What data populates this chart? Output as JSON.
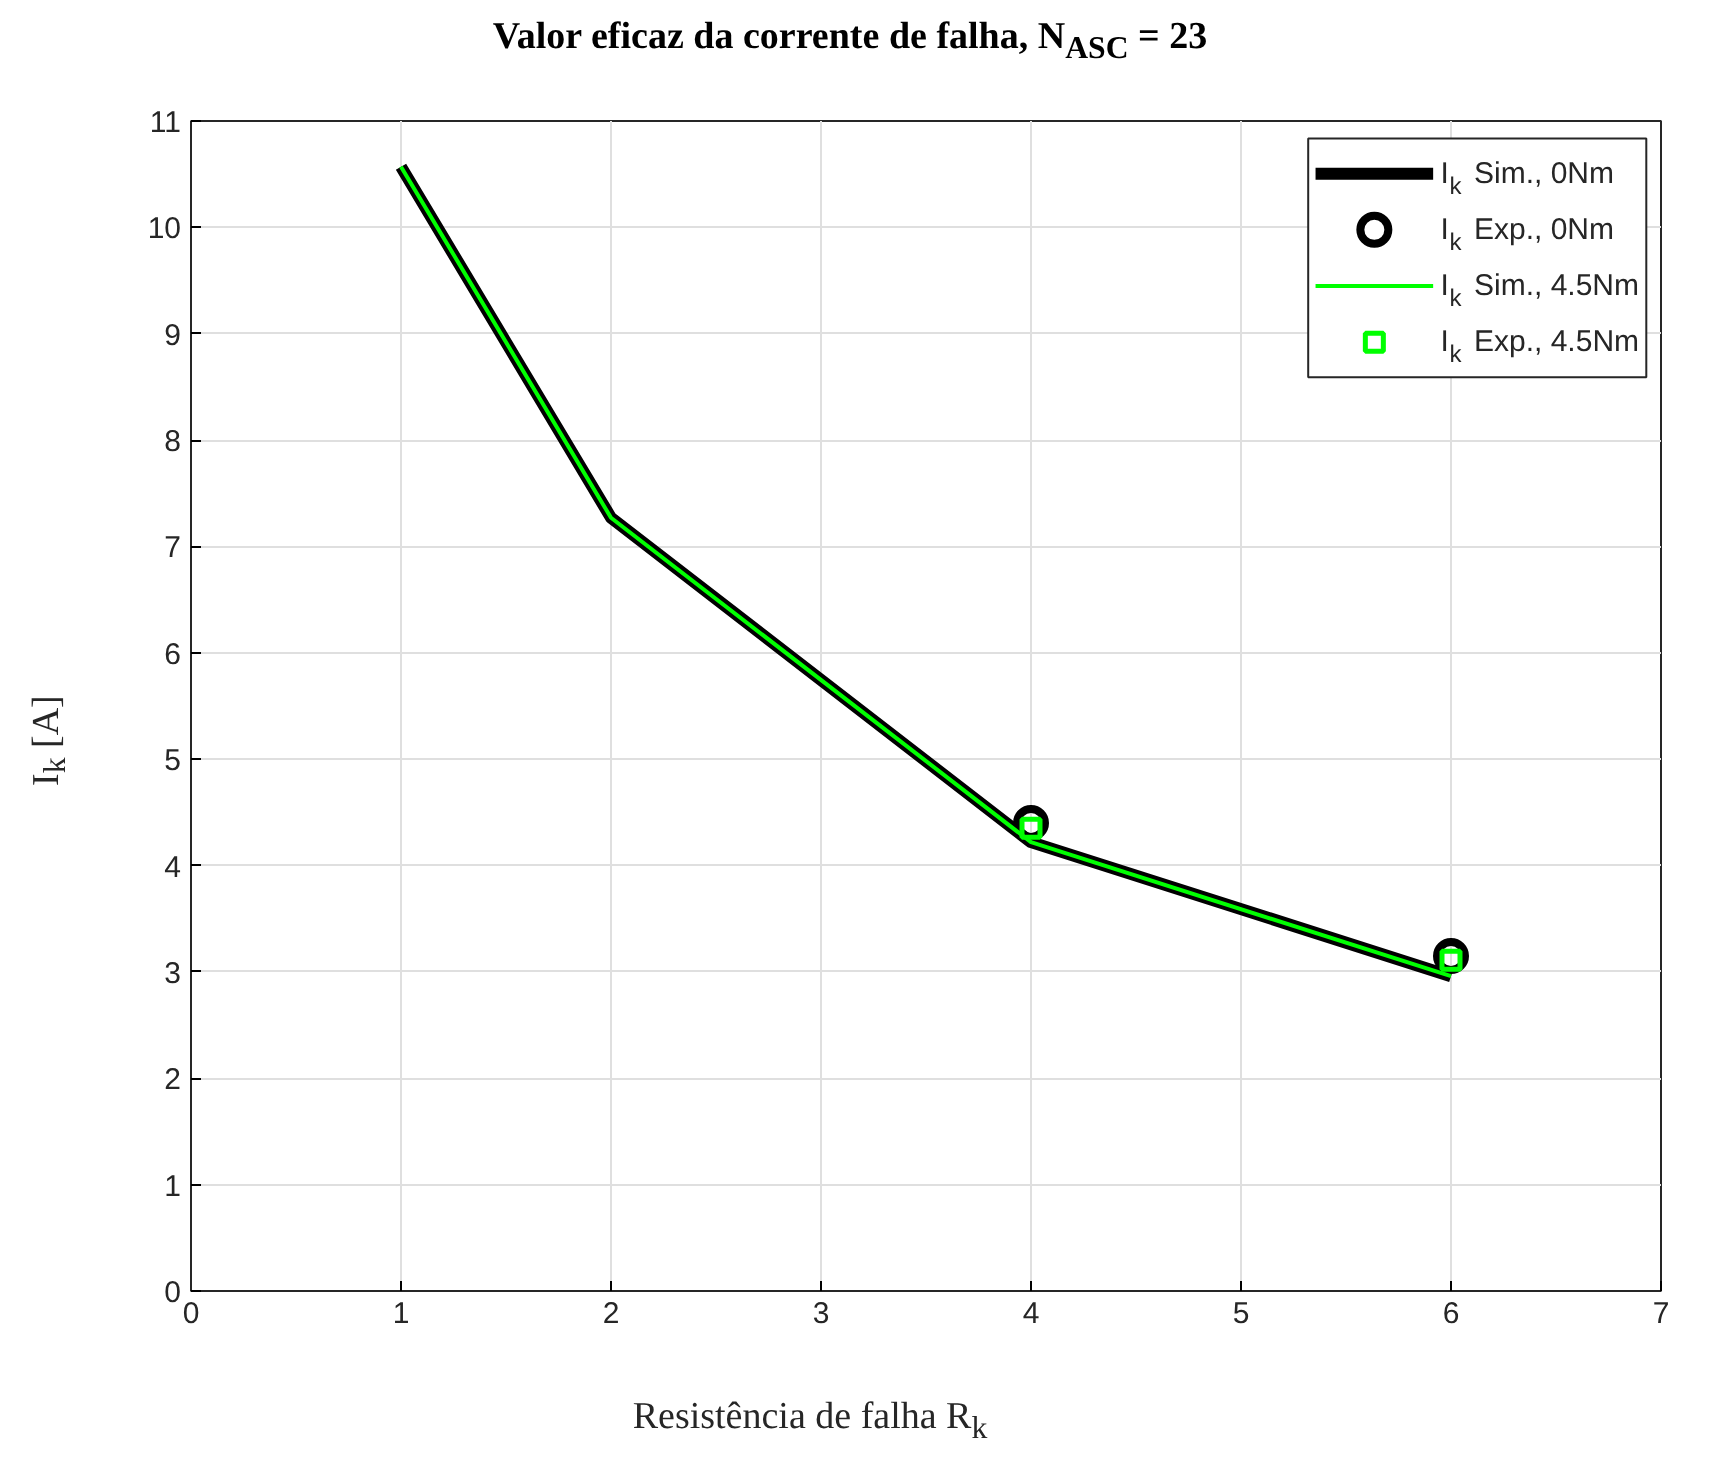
{
  "chart_data": {
    "type": "line",
    "title": "Valor eficaz da corrente de falha, N$_{ASC}$ = 23",
    "xlabel": "Resistência de falha R$_{k}$",
    "ylabel": "I$_{k}$ [A]",
    "xlim": [
      0,
      7
    ],
    "ylim": [
      0,
      11
    ],
    "xticks": [
      0,
      1,
      2,
      3,
      4,
      5,
      6,
      7
    ],
    "yticks": [
      0,
      1,
      2,
      3,
      4,
      5,
      6,
      7,
      8,
      9,
      10,
      11
    ],
    "grid": true,
    "legend": "top right",
    "series": [
      {
        "name": "I$_{k}$ Sim., 0Nm",
        "color": "#000000",
        "x": [
          1,
          2,
          4,
          6
        ],
        "values": [
          10.57,
          7.27,
          4.22,
          2.96
        ]
      },
      {
        "name": "I$_{k}$ Exp., 0Nm",
        "type": "scatter",
        "marker": "circle",
        "color": "#000000",
        "x": [
          4,
          6
        ],
        "values": [
          4.4,
          3.15
        ]
      },
      {
        "name": "I$_{k}$ Sim., 4.5Nm",
        "color": "#00ff00",
        "x": [
          1,
          2,
          4,
          6
        ],
        "values": [
          10.57,
          7.27,
          4.22,
          2.96
        ]
      },
      {
        "name": "I$_{k}$ Exp., 4.5Nm",
        "type": "scatter",
        "marker": "square",
        "color": "#00ff00",
        "x": [
          4,
          6
        ],
        "values": [
          4.35,
          3.11
        ]
      }
    ]
  }
}
